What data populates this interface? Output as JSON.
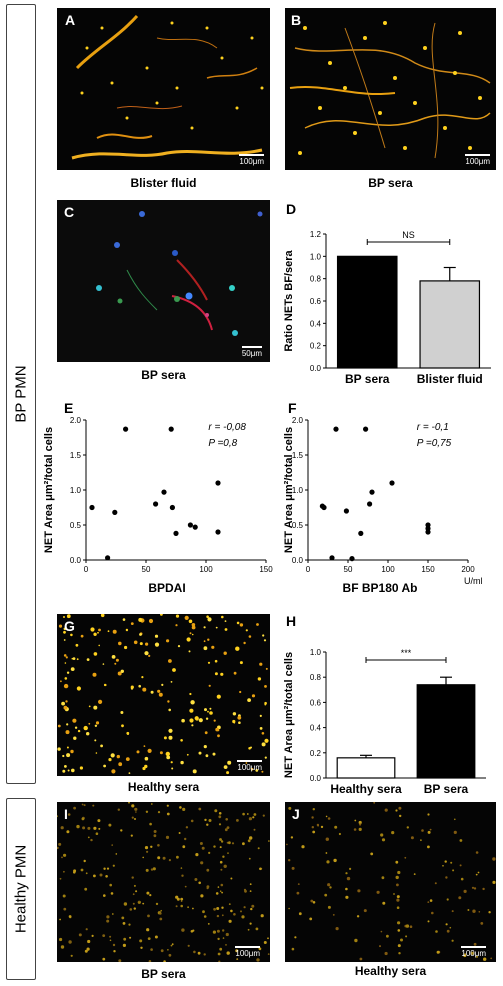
{
  "side_labels": {
    "bp_pmn": "BP PMN",
    "healthy_pmn": "Healthy PMN"
  },
  "panels": {
    "A": {
      "label": "A",
      "scale": "100μm",
      "caption": "Blister fluid"
    },
    "B": {
      "label": "B",
      "scale": "100μm",
      "caption": "BP  sera"
    },
    "C": {
      "label": "C",
      "scale": "50μm",
      "caption": "BP  sera"
    },
    "D": {
      "label": "D"
    },
    "E": {
      "label": "E"
    },
    "F": {
      "label": "F"
    },
    "G": {
      "label": "G",
      "scale": "100μm",
      "caption": "Healthy sera"
    },
    "H": {
      "label": "H"
    },
    "I": {
      "label": "I",
      "scale": "100μm",
      "caption": "BP  sera"
    },
    "J": {
      "label": "J",
      "scale": "100μm",
      "caption": "Healthy sera"
    }
  },
  "colors": {
    "net_orange": "#e8a010",
    "net_yellow": "#ffd21e",
    "dark_bg": "#050505",
    "bar_black": "#000000",
    "bar_gray": "#d0d0d0"
  },
  "chart_data": [
    {
      "id": "D",
      "type": "bar",
      "ylabel": "Ratio NETs BF/sera",
      "categories": [
        "BP sera",
        "Blister fluid"
      ],
      "values": [
        1.0,
        0.78
      ],
      "errors": [
        0,
        0.12
      ],
      "ylim": [
        0,
        1.2
      ],
      "yticks": [
        "0.0",
        "0.2",
        "0.4",
        "0.6",
        "0.8",
        "1.0",
        "1.2"
      ],
      "significance": "NS"
    },
    {
      "id": "E",
      "type": "scatter",
      "xlabel": "BPDAI",
      "ylabel": "NET Area μm²/total cells",
      "xlim": [
        0,
        150
      ],
      "ylim": [
        0,
        2.0
      ],
      "xticks": [
        "0",
        "50",
        "100",
        "150"
      ],
      "yticks": [
        "0.0",
        "0.5",
        "1.0",
        "1.5",
        "2.0"
      ],
      "annotation_r": "r = -0,08",
      "annotation_p": "P =0,8",
      "points": [
        [
          5,
          0.75
        ],
        [
          18,
          0.03
        ],
        [
          24,
          0.68
        ],
        [
          33,
          1.87
        ],
        [
          58,
          0.8
        ],
        [
          65,
          0.97
        ],
        [
          71,
          1.87
        ],
        [
          72,
          0.75
        ],
        [
          75,
          0.38
        ],
        [
          87,
          0.5
        ],
        [
          91,
          0.47
        ],
        [
          110,
          1.1
        ],
        [
          110,
          0.4
        ]
      ]
    },
    {
      "id": "F",
      "type": "scatter",
      "xlabel": "BF BP180 Ab",
      "xunit": "U/ml",
      "ylabel": "NET Area μm²/total cells",
      "xlim": [
        0,
        200
      ],
      "ylim": [
        0,
        2.0
      ],
      "xticks": [
        "0",
        "50",
        "100",
        "150",
        "200"
      ],
      "yticks": [
        "0.0",
        "0.5",
        "1.0",
        "1.5",
        "2.0"
      ],
      "annotation_r": "r = -0,1",
      "annotation_p": "P =0,75",
      "points": [
        [
          18,
          0.77
        ],
        [
          20,
          0.75
        ],
        [
          30,
          0.03
        ],
        [
          35,
          1.87
        ],
        [
          48,
          0.7
        ],
        [
          55,
          0.02
        ],
        [
          66,
          0.38
        ],
        [
          72,
          1.87
        ],
        [
          77,
          0.8
        ],
        [
          80,
          0.97
        ],
        [
          105,
          1.1
        ],
        [
          150,
          0.5
        ],
        [
          150,
          0.45
        ],
        [
          150,
          0.4
        ]
      ]
    },
    {
      "id": "H",
      "type": "bar",
      "ylabel": "NET Area μm²/total cells",
      "categories": [
        "Healthy sera",
        "BP sera"
      ],
      "values": [
        0.16,
        0.74
      ],
      "errors": [
        0.02,
        0.06
      ],
      "ylim": [
        0,
        1.0
      ],
      "yticks": [
        "0.0",
        "0.2",
        "0.4",
        "0.6",
        "0.8",
        "1.0"
      ],
      "significance": "***"
    }
  ]
}
